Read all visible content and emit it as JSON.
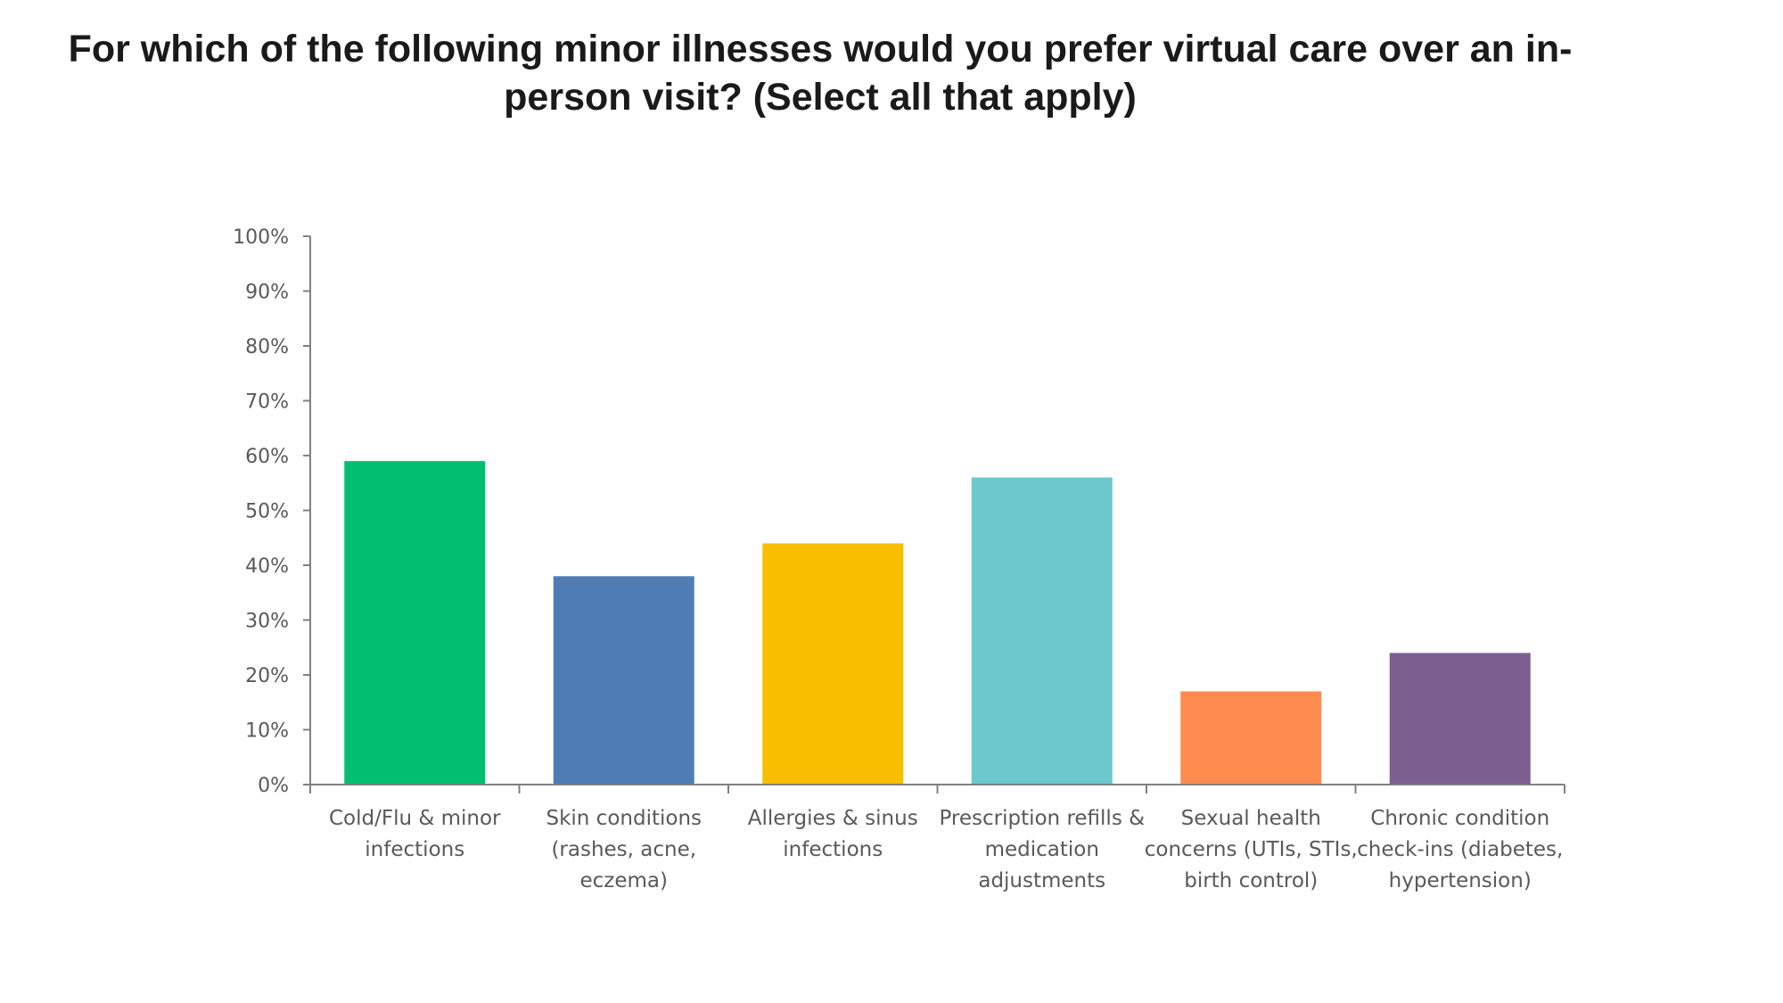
{
  "chart_data": {
    "type": "bar",
    "title": "For which of the following minor illnesses would you prefer virtual care over an in-person visit? (Select all that apply)",
    "title_lines": [
      "For which of the following minor illnesses would you prefer virtual care over an in-",
      "person visit? (Select all that apply)"
    ],
    "xlabel": "",
    "ylabel": "",
    "ylim": [
      0,
      100
    ],
    "y_ticks": [
      "0%",
      "10%",
      "20%",
      "30%",
      "40%",
      "50%",
      "60%",
      "70%",
      "80%",
      "90%",
      "100%"
    ],
    "grid": false,
    "legend": "none",
    "categories": [
      [
        "Cold/Flu & minor",
        "infections"
      ],
      [
        "Skin conditions",
        "(rashes, acne,",
        "eczema)"
      ],
      [
        "Allergies & sinus",
        "infections"
      ],
      [
        "Prescription refills &",
        "medication",
        "adjustments"
      ],
      [
        "Sexual health",
        "concerns (UTIs, STIs,",
        "birth control)"
      ],
      [
        "Chronic condition",
        "check-ins (diabetes,",
        "hypertension)"
      ]
    ],
    "values": [
      59,
      38,
      44,
      56,
      17,
      24
    ],
    "colors": [
      "#00BF6F",
      "#507CB6",
      "#F9BE00",
      "#6BC8CD",
      "#FF8B4F",
      "#7D5E90"
    ],
    "axis_color": "#808080"
  }
}
